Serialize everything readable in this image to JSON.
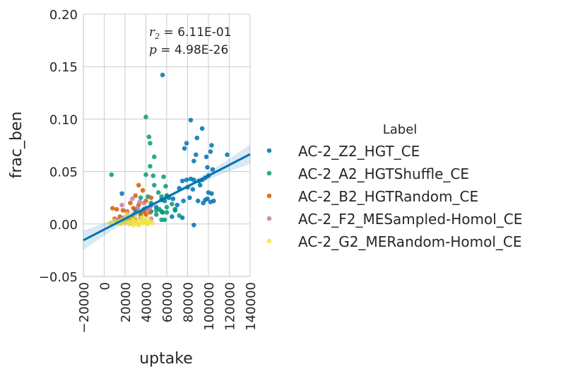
{
  "chart_data": {
    "type": "scatter",
    "xlabel": "uptake",
    "ylabel": "frac_ben",
    "xlim": [
      -20000,
      140000
    ],
    "ylim": [
      -0.05,
      0.2
    ],
    "xticks": [
      -20000,
      0,
      20000,
      40000,
      60000,
      80000,
      100000,
      120000,
      140000
    ],
    "xtick_labels": [
      "−20000",
      "0",
      "20000",
      "40000",
      "60000",
      "80000",
      "100000",
      "120000",
      "140000"
    ],
    "yticks": [
      -0.05,
      0.0,
      0.05,
      0.1,
      0.15,
      0.2
    ],
    "ytick_labels": [
      "−0.05",
      "0.00",
      "0.05",
      "0.10",
      "0.15",
      "0.20"
    ],
    "grid": true,
    "annotation": {
      "r_symbol": "r",
      "r_subscript": "2",
      "r_value": " = 6.11E-01",
      "p_symbol": "p",
      "p_value": " = 4.98E-26"
    },
    "regression": {
      "series": "AC-2_Z2_HGT_CE",
      "x": [
        -20000,
        140000
      ],
      "y": [
        -0.0155,
        0.0665
      ],
      "color": "#0072b2"
    },
    "legend": {
      "title": "Label",
      "position": "right"
    },
    "series": [
      {
        "name": "AC-2_Z2_HGT_CE",
        "color": "#0072b2",
        "points": [
          [
            56000,
            0.142
          ],
          [
            83000,
            0.099
          ],
          [
            94000,
            0.091
          ],
          [
            89000,
            0.082
          ],
          [
            79000,
            0.077
          ],
          [
            103000,
            0.075
          ],
          [
            77000,
            0.072
          ],
          [
            102000,
            0.069
          ],
          [
            98000,
            0.064
          ],
          [
            88000,
            0.066
          ],
          [
            118000,
            0.066
          ],
          [
            86000,
            0.06
          ],
          [
            99000,
            0.054
          ],
          [
            104000,
            0.052
          ],
          [
            100000,
            0.046
          ],
          [
            97000,
            0.044
          ],
          [
            94000,
            0.042
          ],
          [
            83000,
            0.043
          ],
          [
            86000,
            0.042
          ],
          [
            91000,
            0.041
          ],
          [
            79000,
            0.042
          ],
          [
            75000,
            0.041
          ],
          [
            80000,
            0.035
          ],
          [
            72000,
            0.034
          ],
          [
            85000,
            0.033
          ],
          [
            92000,
            0.037
          ],
          [
            100000,
            0.03
          ],
          [
            103000,
            0.029
          ],
          [
            90000,
            0.022
          ],
          [
            95000,
            0.02
          ],
          [
            82000,
            0.025
          ],
          [
            76000,
            0.022
          ],
          [
            70000,
            0.018
          ],
          [
            97000,
            0.023
          ],
          [
            99000,
            0.024
          ],
          [
            102000,
            0.021
          ],
          [
            105000,
            0.022
          ],
          [
            66000,
            0.024
          ],
          [
            60000,
            0.027
          ],
          [
            62000,
            0.025
          ],
          [
            55000,
            0.023
          ],
          [
            58000,
            0.022
          ],
          [
            56000,
            0.011
          ],
          [
            68000,
            0.014
          ],
          [
            50000,
            0.016
          ],
          [
            45000,
            0.018
          ],
          [
            30000,
            0.014
          ],
          [
            65000,
            0.007
          ],
          [
            75000,
            0.006
          ],
          [
            86000,
            -0.001
          ],
          [
            17000,
            0.029
          ]
        ]
      },
      {
        "name": "AC-2_A2_HGTShuffle_CE",
        "color": "#009e73",
        "points": [
          [
            40000,
            0.102
          ],
          [
            43000,
            0.083
          ],
          [
            44000,
            0.077
          ],
          [
            48000,
            0.064
          ],
          [
            44000,
            0.055
          ],
          [
            47000,
            0.046
          ],
          [
            40000,
            0.047
          ],
          [
            7000,
            0.047
          ],
          [
            57000,
            0.045
          ],
          [
            48000,
            0.037
          ],
          [
            59000,
            0.036
          ],
          [
            52000,
            0.03
          ],
          [
            55000,
            0.026
          ],
          [
            60000,
            0.027
          ],
          [
            42000,
            0.026
          ],
          [
            35000,
            0.025
          ],
          [
            55000,
            0.023
          ],
          [
            45000,
            0.02
          ],
          [
            40000,
            0.015
          ],
          [
            50000,
            0.013
          ],
          [
            53000,
            0.014
          ],
          [
            45000,
            0.012
          ],
          [
            55000,
            0.012
          ],
          [
            60000,
            0.011
          ],
          [
            35000,
            0.01
          ],
          [
            38000,
            0.014
          ],
          [
            30000,
            0.011
          ],
          [
            28000,
            0.008
          ],
          [
            60000,
            0.016
          ],
          [
            68000,
            0.013
          ],
          [
            65000,
            0.019
          ],
          [
            72000,
            0.008
          ],
          [
            50000,
            0.009
          ],
          [
            55000,
            0.004
          ],
          [
            58000,
            0.004
          ],
          [
            23000,
            0.005
          ]
        ]
      },
      {
        "name": "AC-2_B2_HGTRandom_CE",
        "color": "#d55e00",
        "points": [
          [
            33000,
            0.037
          ],
          [
            30000,
            0.027
          ],
          [
            37000,
            0.032
          ],
          [
            25000,
            0.02
          ],
          [
            40000,
            0.022
          ],
          [
            45000,
            0.025
          ],
          [
            28000,
            0.015
          ],
          [
            33000,
            0.018
          ],
          [
            22000,
            0.012
          ],
          [
            18000,
            0.013
          ],
          [
            15000,
            0.007
          ],
          [
            10000,
            0.005
          ],
          [
            8000,
            0.015
          ],
          [
            12000,
            0.014
          ],
          [
            38000,
            0.012
          ],
          [
            35000,
            0.008
          ],
          [
            27000,
            0.006
          ],
          [
            30000,
            0.004
          ],
          [
            40000,
            0.009
          ],
          [
            44000,
            0.011
          ],
          [
            20000,
            0.002
          ],
          [
            25000,
            0.001
          ]
        ]
      },
      {
        "name": "AC-2_F2_MESampled-Homol_CE",
        "color": "#cc79a7",
        "points": [
          [
            38000,
            0.02
          ],
          [
            27000,
            0.024
          ],
          [
            17000,
            0.018
          ],
          [
            32000,
            0.015
          ],
          [
            42000,
            0.013
          ],
          [
            22000,
            0.011
          ],
          [
            28000,
            0.009
          ],
          [
            35000,
            0.006
          ],
          [
            18000,
            0.006
          ],
          [
            45000,
            0.005
          ],
          [
            24000,
            0.004
          ],
          [
            30000,
            0.003
          ],
          [
            12000,
            0.004
          ],
          [
            38000,
            0.002
          ],
          [
            20000,
            0.001
          ],
          [
            44000,
            0.016
          ],
          [
            34000,
            0.021
          ]
        ]
      },
      {
        "name": "AC-2_G2_MERandom-Homol_CE",
        "color": "#f0e442",
        "points": [
          [
            6000,
            0.001
          ],
          [
            10000,
            0.003
          ],
          [
            14000,
            0.002
          ],
          [
            17000,
            0.004
          ],
          [
            19000,
            0.001
          ],
          [
            22000,
            0.003
          ],
          [
            24000,
            0.0
          ],
          [
            26000,
            0.002
          ],
          [
            28000,
            0.004
          ],
          [
            30000,
            0.001
          ],
          [
            32000,
            0.003
          ],
          [
            34000,
            0.0
          ],
          [
            36000,
            0.002
          ],
          [
            38000,
            0.001
          ],
          [
            40000,
            0.003
          ],
          [
            42000,
            0.0
          ],
          [
            44000,
            0.002
          ],
          [
            46000,
            0.001
          ],
          [
            20000,
            0.006
          ],
          [
            25000,
            0.007
          ],
          [
            30000,
            0.008
          ],
          [
            36000,
            0.006
          ],
          [
            28000,
            -0.001
          ],
          [
            33000,
            -0.001
          ],
          [
            16000,
            0.0
          ],
          [
            12000,
            0.001
          ],
          [
            22000,
            0.009
          ],
          [
            38000,
            0.004
          ],
          [
            42000,
            0.005
          ]
        ]
      }
    ]
  }
}
